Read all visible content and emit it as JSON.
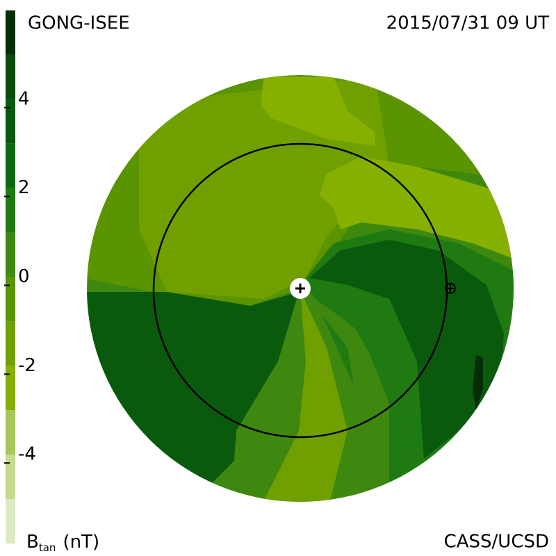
{
  "chart_data": {
    "type": "colormap",
    "title_left": "GONG-ISEE",
    "title_right": "2015/07/31 09 UT",
    "credit": "CASS/UCSD",
    "zlabel_main": "B",
    "zlabel_sub": "tan",
    "zlabel_unit": "(nT)",
    "zlim": [
      -6,
      6
    ],
    "zticks": [
      -4,
      -2,
      0,
      2,
      4
    ],
    "colors": [
      "#dde9c2",
      "#c6d98f",
      "#a9c759",
      "#86b000",
      "#6fa000",
      "#5a9400",
      "#3f8810",
      "#1f7a12",
      "#0a6a10",
      "#0a5a0e",
      "#0a4a0c",
      "#062e06"
    ]
  }
}
